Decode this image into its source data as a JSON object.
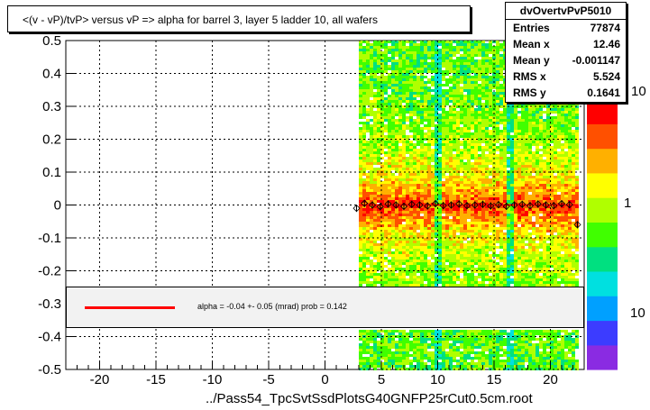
{
  "title": "<(v - vP)/tvP> versus   vP => alpha for barrel 3, layer 5 ladder 10, all wafers",
  "footer": "../Pass54_TpcSvtSsdPlotsG40GNFP25rCut0.5cm.root",
  "stats": {
    "name": "dvOvertvPvP5010",
    "rows": [
      {
        "label": "Entries",
        "value": "77874"
      },
      {
        "label": "Mean x",
        "value": "12.46"
      },
      {
        "label": "Mean y",
        "value": "-0.001147"
      },
      {
        "label": "RMS x",
        "value": "5.524"
      },
      {
        "label": "RMS y",
        "value": "0.1641"
      }
    ]
  },
  "legend": {
    "fit_text": "alpha =   -0.04 +-  0.05 (mrad) prob = 0.142"
  },
  "colors": {
    "fit": "#ff0000",
    "points": "#000000"
  },
  "chart_data": {
    "type": "heatmap",
    "xlim": [
      -23,
      23
    ],
    "ylim": [
      -0.5,
      0.5
    ],
    "x_ticks": [
      -20,
      -15,
      -10,
      -5,
      0,
      5,
      10,
      15,
      20
    ],
    "y_ticks": [
      -0.5,
      -0.4,
      -0.3,
      -0.2,
      -0.1,
      0,
      0.1,
      0.2,
      0.3,
      0.4,
      0.5
    ],
    "grid": true,
    "occupied_x_range": [
      3,
      22.5
    ],
    "band_gaps_x": [
      9.6,
      10.3,
      15.8,
      16.5
    ],
    "profile_points": {
      "x": [
        2.8,
        3.5,
        4.2,
        4.9,
        5.6,
        6.3,
        7.0,
        7.7,
        8.4,
        9.1,
        9.8,
        10.5,
        11.2,
        11.9,
        12.6,
        13.3,
        14.0,
        14.7,
        15.4,
        16.1,
        16.8,
        17.5,
        18.2,
        18.9,
        19.6,
        20.3,
        21.0,
        21.7,
        22.4
      ],
      "y": [
        -0.01,
        0.005,
        0.0,
        -0.005,
        0.003,
        0.0,
        -0.004,
        0.002,
        0.0,
        -0.003,
        0.004,
        -0.002,
        0.0,
        0.003,
        -0.002,
        0.0,
        0.002,
        -0.003,
        0.001,
        -0.004,
        0.0,
        0.002,
        -0.002,
        0.003,
        0.0,
        -0.002,
        0.004,
        0.001,
        -0.06
      ]
    },
    "fit_line": {
      "x": [
        3,
        22.5
      ],
      "y": [
        0.0,
        0.0
      ]
    },
    "colorbar": {
      "labels": [
        "1",
        "10",
        "10"
      ],
      "colors": [
        "#8a2be2",
        "#3c3cff",
        "#00a0ff",
        "#00e0e0",
        "#00e080",
        "#40ff00",
        "#b0ff00",
        "#ffff00",
        "#ffb000",
        "#ff5000",
        "#ff0000"
      ]
    }
  }
}
